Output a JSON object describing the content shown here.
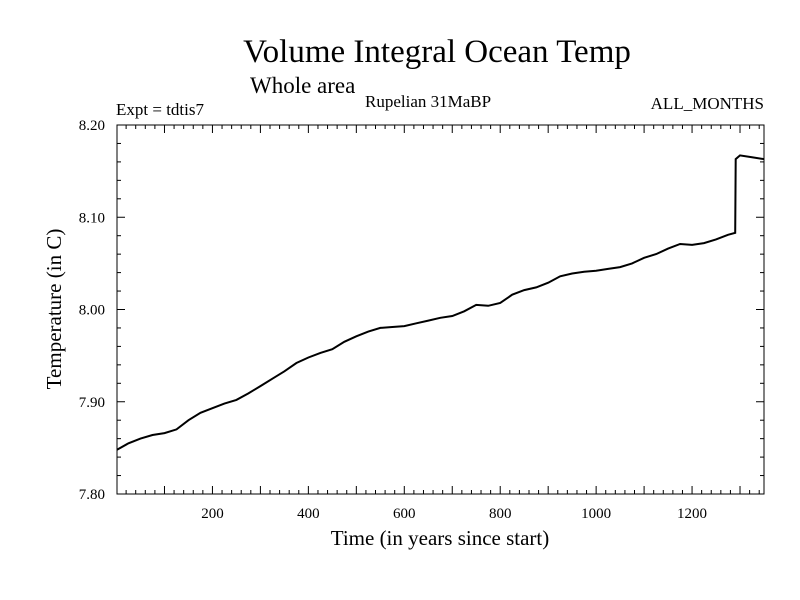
{
  "chart_data": {
    "type": "line",
    "title": "Volume Integral Ocean Temp",
    "subtitle": "Whole area",
    "experiment_label": "Expt = tdtis7",
    "period_label": "Rupelian  31MaBP",
    "months_label": "ALL_MONTHS",
    "xlabel": "Time (in years since start)",
    "ylabel": "Temperature (in C)",
    "xlim": [
      1,
      1350
    ],
    "ylim": [
      7.8,
      8.2
    ],
    "x_ticks": [
      200,
      400,
      600,
      800,
      1000,
      1200
    ],
    "x_tick_labels": [
      "200",
      "400",
      "600",
      "800",
      "1000",
      "1200"
    ],
    "y_ticks": [
      7.8,
      7.9,
      8.0,
      8.1,
      8.2
    ],
    "y_tick_labels": [
      "7.80",
      "7.90",
      "8.00",
      "8.10",
      "8.20"
    ],
    "grid": false,
    "series": [
      {
        "name": "Volume integral ocean temperature",
        "color": "#000000",
        "x": [
          1,
          25,
          50,
          75,
          100,
          125,
          150,
          175,
          200,
          225,
          250,
          275,
          300,
          325,
          350,
          375,
          400,
          425,
          450,
          475,
          500,
          525,
          550,
          575,
          600,
          625,
          650,
          675,
          700,
          725,
          750,
          775,
          800,
          825,
          850,
          875,
          900,
          925,
          950,
          975,
          1000,
          1025,
          1050,
          1075,
          1100,
          1125,
          1150,
          1175,
          1200,
          1225,
          1250,
          1275,
          1290,
          1291,
          1300,
          1325,
          1350
        ],
        "values": [
          7.848,
          7.855,
          7.86,
          7.864,
          7.866,
          7.87,
          7.88,
          7.888,
          7.893,
          7.898,
          7.902,
          7.909,
          7.917,
          7.925,
          7.933,
          7.942,
          7.948,
          7.953,
          7.957,
          7.965,
          7.971,
          7.976,
          7.98,
          7.981,
          7.982,
          7.985,
          7.988,
          7.991,
          7.993,
          7.998,
          8.005,
          8.004,
          8.007,
          8.016,
          8.021,
          8.024,
          8.029,
          8.036,
          8.039,
          8.041,
          8.042,
          8.044,
          8.046,
          8.05,
          8.056,
          8.06,
          8.066,
          8.071,
          8.07,
          8.072,
          8.076,
          8.081,
          8.083,
          8.163,
          8.167,
          8.165,
          8.163
        ]
      }
    ]
  }
}
